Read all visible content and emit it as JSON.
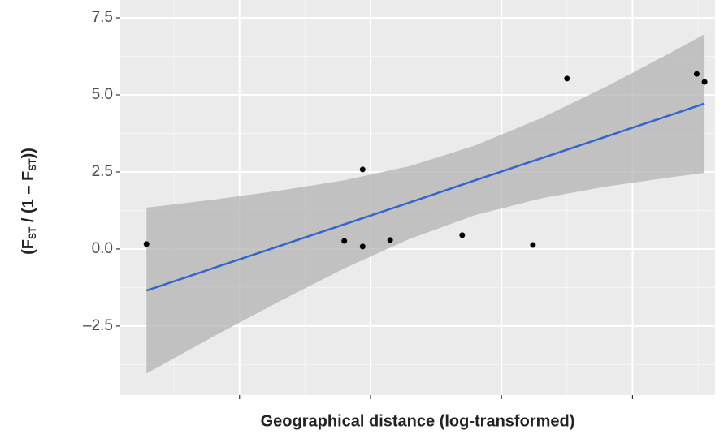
{
  "chart_data": {
    "type": "scatter",
    "xlabel": "Geographical distance  (log-transformed)",
    "ylabel_parts": [
      "(F",
      "ST",
      " / (1 – F",
      "ST",
      "))"
    ],
    "xlim": [
      0.09,
      4.63
    ],
    "ylim": [
      -4.74,
      8.08
    ],
    "xticks": [
      1,
      2,
      3,
      4
    ],
    "xminor": [
      0.5,
      1.5,
      2.5,
      3.5,
      4.5
    ],
    "yticks": [
      {
        "value": 7.5,
        "label": "7.5"
      },
      {
        "value": 5,
        "label": "5.0"
      },
      {
        "value": 2.5,
        "label": "2.5"
      },
      {
        "value": 0,
        "label": "0.0"
      },
      {
        "value": -2.5,
        "label": "–2.5"
      }
    ],
    "yminor": [
      6.25,
      3.75,
      1.25,
      -1.25,
      -3.75
    ],
    "grid": true,
    "points": {
      "color": "#000000",
      "x": [
        0.29,
        1.8,
        1.94,
        1.94,
        2.15,
        2.7,
        3.24,
        3.5,
        4.49,
        4.55
      ],
      "y": [
        0.16,
        0.26,
        0.08,
        2.58,
        0.29,
        0.45,
        0.13,
        5.53,
        5.68,
        5.42
      ]
    },
    "fit": {
      "color": "#3366cc",
      "band_color": "#b3b3b3",
      "x": [
        0.29,
        0.8,
        1.3,
        1.8,
        2.3,
        2.8,
        3.3,
        3.8,
        4.3,
        4.55
      ],
      "values": [
        -1.35,
        -0.62,
        0.09,
        0.8,
        1.51,
        2.23,
        2.94,
        3.65,
        4.36,
        4.72
      ],
      "lower": [
        -4.04,
        -2.84,
        -1.71,
        -0.63,
        0.33,
        1.1,
        1.64,
        2.03,
        2.33,
        2.47
      ],
      "upper": [
        1.34,
        1.6,
        1.89,
        2.23,
        2.69,
        3.36,
        4.24,
        5.27,
        6.39,
        6.97
      ]
    }
  }
}
